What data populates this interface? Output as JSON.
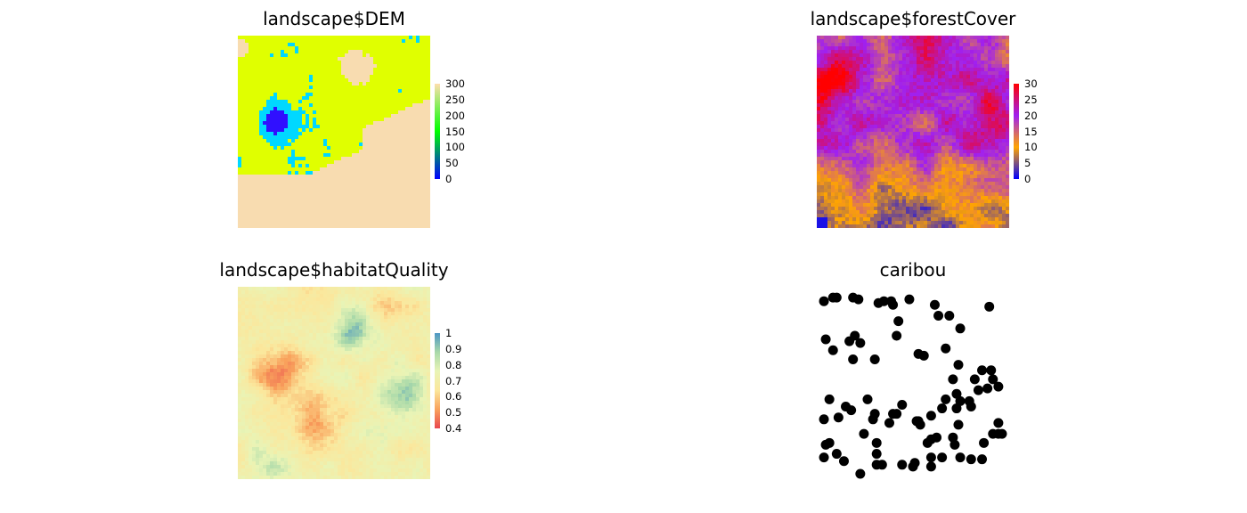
{
  "chart_data": [
    {
      "type": "heatmap",
      "title": "landscape$DEM",
      "legend": {
        "ticks": [
          "300",
          "250",
          "200",
          "150",
          "100",
          "50",
          "0"
        ],
        "range": [
          0,
          300
        ],
        "colors": [
          "#0000ff",
          "#00ff00",
          "#ffdead"
        ]
      },
      "grid": "off",
      "classes": [
        {
          "value": 40,
          "color": "#3010ff"
        },
        {
          "value": 80,
          "color": "#00d8ff"
        },
        {
          "value": 160,
          "color": "#e0ff00"
        },
        {
          "value": 300,
          "color": "#f8dcb0"
        }
      ]
    },
    {
      "type": "heatmap",
      "title": "landscape$forestCover",
      "legend": {
        "ticks": [
          "30",
          "25",
          "20",
          "15",
          "10",
          "5",
          "0"
        ],
        "range": [
          0,
          30
        ],
        "colors": [
          "#0000ff",
          "#ffa500",
          "#a020f0",
          "#ff0000"
        ]
      },
      "grid": "off"
    },
    {
      "type": "heatmap",
      "title": "landscape$habitatQuality",
      "legend": {
        "ticks": [
          "1",
          "0.9",
          "0.8",
          "0.7",
          "0.6",
          "0.5",
          "0.4"
        ],
        "range": [
          0.35,
          1.0
        ],
        "colors": [
          "#e8474d",
          "#f9a25c",
          "#fbe79c",
          "#e9f4b6",
          "#a9d9a9",
          "#4c96c4"
        ]
      },
      "grid": "off"
    },
    {
      "type": "scatter",
      "title": "caribou",
      "xlim": [
        0,
        100
      ],
      "ylim": [
        0,
        100
      ],
      "point_color": "#000000",
      "x": [
        1,
        6,
        8,
        17,
        20,
        31,
        34,
        38,
        39,
        42,
        48,
        62,
        64,
        70,
        76,
        2,
        15,
        21,
        17,
        29,
        53,
        56,
        68,
        72,
        88,
        93,
        75,
        84,
        97,
        25,
        16,
        68,
        74,
        13,
        4,
        44,
        39,
        1,
        9,
        28,
        53,
        60,
        75,
        94,
        97,
        66,
        41,
        52,
        73,
        97,
        63,
        58,
        60,
        72,
        30,
        89,
        1,
        60,
        66,
        76,
        99,
        30,
        8,
        44,
        88,
        50,
        82,
        12,
        33,
        51,
        21,
        30,
        60,
        23,
        4,
        2,
        54,
        29,
        37,
        74,
        76,
        81,
        82,
        86,
        91,
        94,
        41,
        18,
        6,
        92
      ],
      "y": [
        95,
        97,
        97,
        97,
        96,
        94,
        95,
        95,
        93,
        84,
        96,
        93,
        87,
        87,
        80,
        74,
        73,
        72,
        63,
        63,
        66,
        65,
        69,
        52,
        57,
        57,
        60,
        52,
        48,
        41,
        35,
        41,
        44,
        37,
        41,
        38,
        33,
        30,
        31,
        30,
        29,
        32,
        27,
        22,
        28,
        36,
        33,
        29,
        16,
        22,
        20,
        17,
        19,
        20,
        17,
        17,
        9,
        9,
        9,
        9,
        22,
        11,
        11,
        5,
        8,
        4,
        8,
        7,
        5,
        6,
        0,
        5,
        4,
        22,
        17,
        16,
        27,
        33,
        28,
        36,
        40,
        40,
        37,
        46,
        47,
        52,
        76,
        76,
        68,
        92
      ]
    }
  ]
}
